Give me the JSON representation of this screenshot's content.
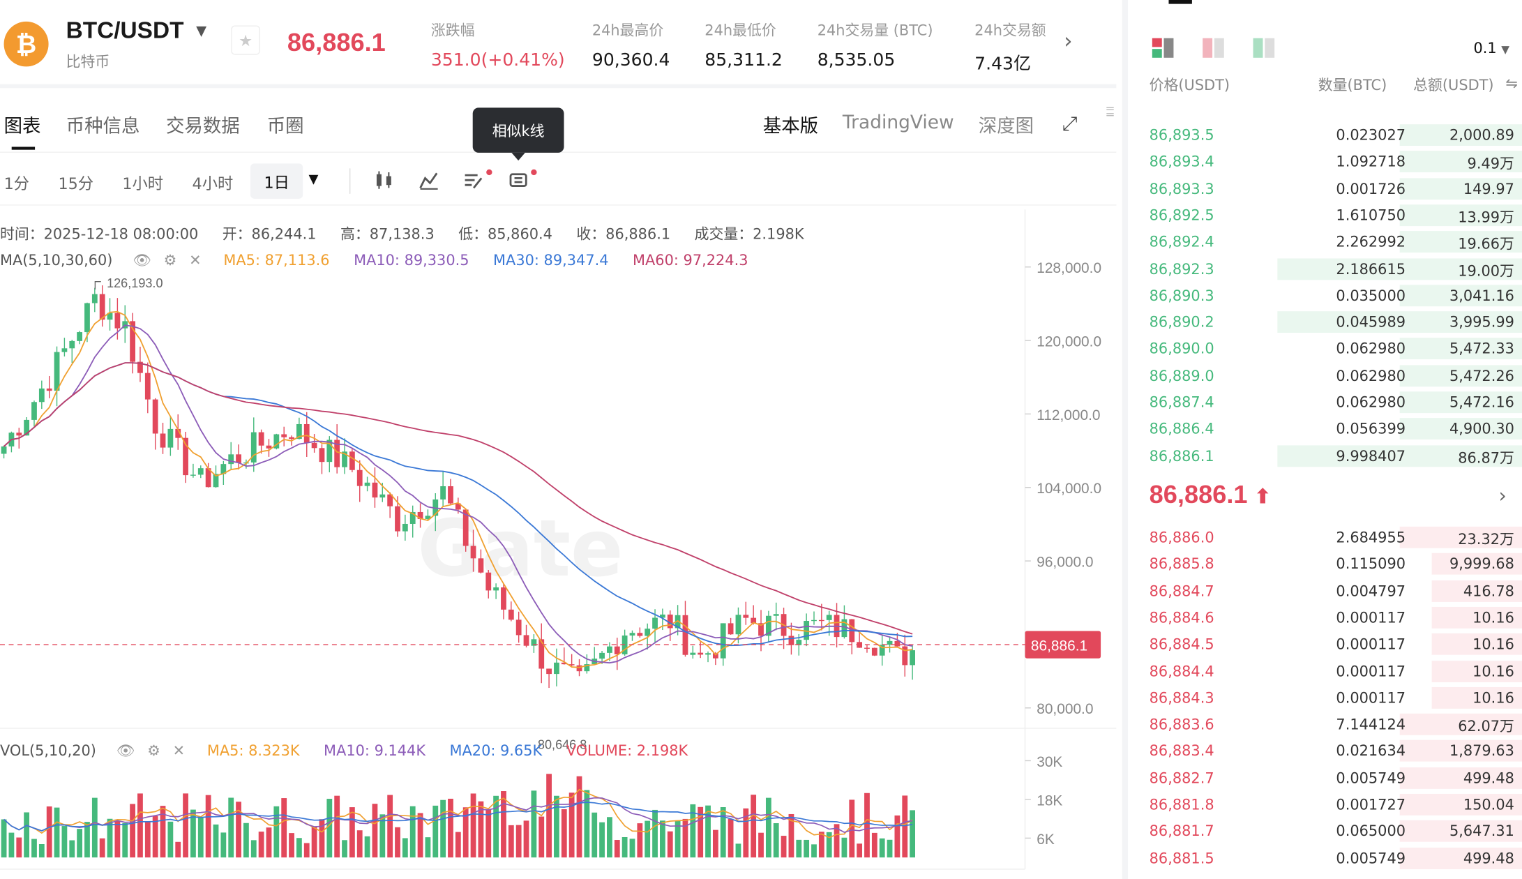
{
  "ticker": {
    "coin_glyph": "₿",
    "pair": "BTC/USDT",
    "pair_name": "比特币",
    "last_price": "86,886.1",
    "stats": [
      {
        "label": "涨跌幅",
        "value": "351.0(+0.41%)"
      },
      {
        "label": "24h最高价",
        "value": "90,360.4"
      },
      {
        "label": "24h最低价",
        "value": "85,311.2"
      },
      {
        "label": "24h交易量 (BTC)",
        "value": "8,535.05"
      },
      {
        "label": "24h交易额",
        "value": "7.43亿"
      }
    ]
  },
  "tabs": [
    "图表",
    "币种信息",
    "交易数据",
    "币圈"
  ],
  "modes": [
    "基本版",
    "TradingView",
    "深度图"
  ],
  "timeframes": [
    "1分",
    "15分",
    "1小时",
    "4小时",
    "1日"
  ],
  "tooltip": "相似k线",
  "legend": {
    "time": "时间：2025-12-18 08:00:00",
    "open": "开：86,244.1",
    "high": "高：87,138.3",
    "low": "低：85,860.4",
    "close": "收：86,886.1",
    "volume": "成交量：2.198K",
    "ma_label": "MA(5,10,30,60)",
    "ma5": "MA5: 87,113.6",
    "ma10": "MA10: 89,330.5",
    "ma30": "MA30: 89,347.4",
    "ma60": "MA60: 97,224.3",
    "vol_label": "VOL(5,10,20)",
    "vma5": "MA5: 8.323K",
    "vma10": "MA10: 9.144K",
    "vma20": "MA20: 9.65K",
    "vol_now": "VOLUME: 2.198K"
  },
  "chart_data": {
    "type": "candlestick",
    "y_ticks": [
      "128,000.0",
      "120,000.0",
      "112,000.0",
      "104,000.0",
      "96,000.0",
      "80,000.0"
    ],
    "vol_ticks": [
      "30K",
      "18K",
      "6K"
    ],
    "current_price_label": "86,886.1",
    "max_label": "126,193.0",
    "min_label": "80,646.8",
    "ylim": [
      78000,
      130000
    ],
    "colors": {
      "up": "#45b97c",
      "down": "#e2485b",
      "ma5": "#f0a030",
      "ma10": "#8c5cb8",
      "ma30": "#3a78d6",
      "ma60": "#c0406a"
    }
  },
  "orderbook": {
    "precision": "0.1",
    "headers": {
      "price": "价格(USDT)",
      "qty": "数量(BTC)",
      "total": "总额(USDT)"
    },
    "asks_top": [
      [
        "86,893.5",
        "0.023027",
        "2,000.89",
        0.31
      ],
      [
        "86,893.4",
        "1.092718",
        "9.49万",
        0.31
      ],
      [
        "86,893.3",
        "0.001726",
        "149.97",
        0.31
      ],
      [
        "86,892.5",
        "1.610750",
        "13.99万",
        0.31
      ],
      [
        "86,892.4",
        "2.262992",
        "19.66万",
        0.31
      ],
      [
        "86,892.3",
        "2.186615",
        "19.00万",
        0.62
      ],
      [
        "86,890.3",
        "0.035000",
        "3,041.16",
        0.31
      ],
      [
        "86,890.2",
        "0.045989",
        "3,995.99",
        0.62
      ],
      [
        "86,890.0",
        "0.062980",
        "5,472.33",
        0.31
      ],
      [
        "86,889.0",
        "0.062980",
        "5,472.26",
        0.31
      ],
      [
        "86,887.4",
        "0.062980",
        "5,472.16",
        0.31
      ],
      [
        "86,886.4",
        "0.056399",
        "4,900.30",
        0.31
      ],
      [
        "86,886.1",
        "9.998407",
        "86.87万",
        0.62
      ]
    ],
    "mid_price": "86,886.1",
    "bids": [
      [
        "86,886.0",
        "2.684955",
        "23.32万",
        0.31
      ],
      [
        "86,885.8",
        "0.115090",
        "9,999.68",
        0.23
      ],
      [
        "86,884.7",
        "0.004797",
        "416.78",
        0.23
      ],
      [
        "86,884.6",
        "0.000117",
        "10.16",
        0.23
      ],
      [
        "86,884.5",
        "0.000117",
        "10.16",
        0.23
      ],
      [
        "86,884.4",
        "0.000117",
        "10.16",
        0.23
      ],
      [
        "86,884.3",
        "0.000117",
        "10.16",
        0.23
      ],
      [
        "86,883.6",
        "7.144124",
        "62.07万",
        0.31
      ],
      [
        "86,883.4",
        "0.021634",
        "1,879.63",
        0.31
      ],
      [
        "86,882.7",
        "0.005749",
        "499.48",
        0.31
      ],
      [
        "86,881.8",
        "0.001727",
        "150.04",
        0.31
      ],
      [
        "86,881.7",
        "0.065000",
        "5,647.31",
        0.31
      ],
      [
        "86,881.5",
        "0.005749",
        "499.48",
        0.31
      ]
    ]
  }
}
